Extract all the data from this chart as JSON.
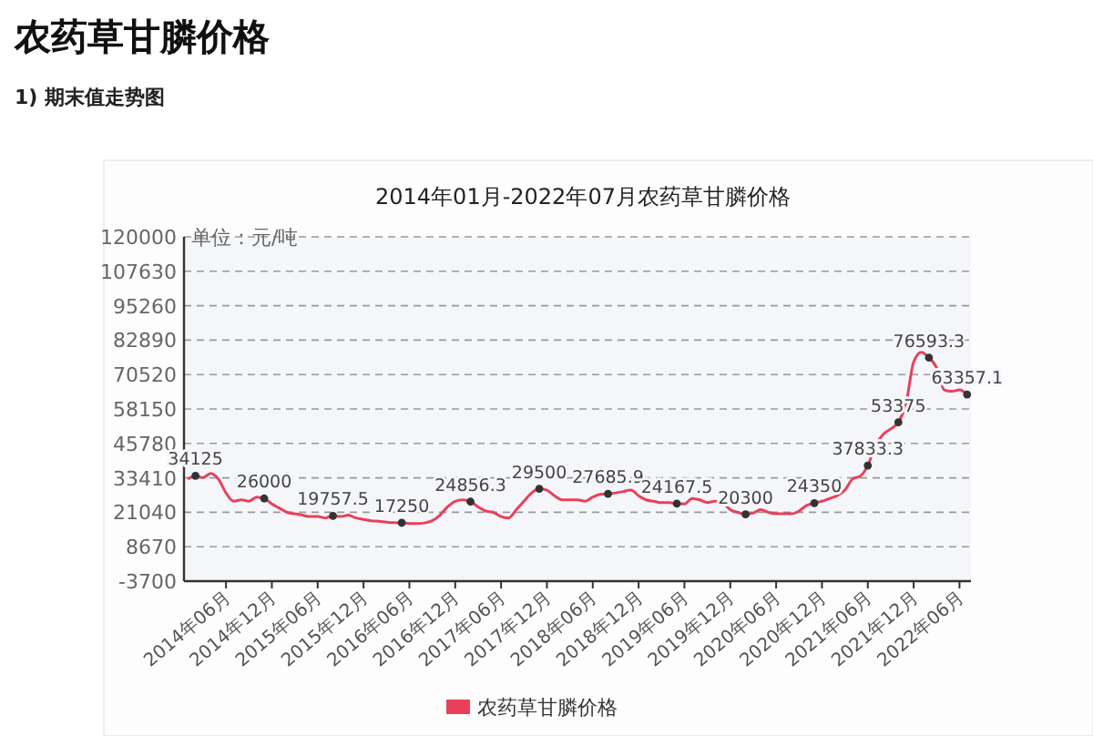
{
  "chart_data": {
    "type": "line",
    "title": "农药草甘膦价格",
    "subtitle": "1) 期末值走势图",
    "annotations": [
      "2014年01月-2022年07月农药草甘膦价格",
      "单位：元/吨"
    ],
    "categories": [
      null,
      null,
      null,
      null,
      null,
      "2014年06月",
      null,
      null,
      null,
      null,
      null,
      "2014年12月",
      null,
      null,
      null,
      null,
      null,
      "2015年06月",
      null,
      null,
      null,
      null,
      null,
      "2015年12月",
      null,
      null,
      null,
      null,
      null,
      "2016年06月",
      null,
      null,
      null,
      null,
      null,
      "2016年12月",
      null,
      null,
      null,
      null,
      null,
      "2017年06月",
      null,
      null,
      null,
      null,
      null,
      "2017年12月",
      null,
      null,
      null,
      null,
      null,
      "2018年06月",
      null,
      null,
      null,
      null,
      null,
      "2018年12月",
      null,
      null,
      null,
      null,
      null,
      "2019年06月",
      null,
      null,
      null,
      null,
      null,
      "2019年12月",
      null,
      null,
      null,
      null,
      null,
      "2020年06月",
      null,
      null,
      null,
      null,
      null,
      "2020年12月",
      null,
      null,
      null,
      null,
      null,
      "2021年06月",
      null,
      null,
      null,
      null,
      null,
      "2021年12月",
      null,
      null,
      null,
      null,
      null,
      "2022年06月",
      null
    ],
    "series": [
      {
        "name": "农药草甘膦价格",
        "color": "#e8405a",
        "values": [
          33000,
          34125,
          33500,
          35000,
          33000,
          28000,
          25000,
          25500,
          25000,
          26500,
          26000,
          24000,
          22500,
          21000,
          20500,
          20000,
          19500,
          19500,
          19000,
          19757.5,
          19500,
          20000,
          19000,
          18500,
          18000,
          17800,
          17500,
          17300,
          17250,
          17000,
          17000,
          17200,
          18000,
          20000,
          23000,
          25000,
          25500,
          24856.3,
          23000,
          21500,
          21000,
          19500,
          19000,
          22000,
          25000,
          28000,
          29500,
          29000,
          27000,
          25500,
          25500,
          25500,
          25000,
          26500,
          27500,
          27685.9,
          28000,
          28500,
          29000,
          27000,
          25500,
          25000,
          24500,
          24500,
          24167.5,
          24000,
          26000,
          25500,
          24500,
          25000,
          24500,
          22000,
          21000,
          20300,
          20800,
          22000,
          21000,
          20500,
          20500,
          20500,
          21500,
          23500,
          24350,
          25000,
          26000,
          27000,
          29000,
          33000,
          34000,
          37833.3,
          45000,
          49000,
          51000,
          53375,
          60000,
          75000,
          78500,
          76593.3,
          73000,
          65000,
          64500,
          65000,
          63357.1
        ],
        "value_labels": [
          null,
          "34125",
          null,
          null,
          null,
          null,
          null,
          null,
          null,
          null,
          "26000",
          null,
          null,
          null,
          null,
          null,
          null,
          null,
          null,
          "19757.5",
          null,
          null,
          null,
          null,
          null,
          null,
          null,
          null,
          "17250",
          null,
          null,
          null,
          null,
          null,
          null,
          null,
          null,
          "24856.3",
          null,
          null,
          null,
          null,
          null,
          null,
          null,
          null,
          "29500",
          null,
          null,
          null,
          null,
          null,
          null,
          null,
          null,
          "27685.9",
          null,
          null,
          null,
          null,
          null,
          null,
          null,
          null,
          "24167.5",
          null,
          null,
          null,
          null,
          null,
          null,
          null,
          null,
          "20300",
          null,
          null,
          null,
          null,
          null,
          null,
          null,
          null,
          "24350",
          null,
          null,
          null,
          null,
          null,
          null,
          "37833.3",
          null,
          null,
          null,
          "53375",
          null,
          null,
          null,
          "76593.3",
          null,
          null,
          null,
          null,
          "63357.1"
        ]
      }
    ],
    "ylim": [
      -3700,
      120000
    ],
    "yticks": [
      -3700,
      8670,
      21040,
      33410,
      45780,
      58150,
      70520,
      82890,
      95260,
      107630,
      120000
    ],
    "grid": "y",
    "legend": "bottom",
    "line_style": "solid"
  }
}
